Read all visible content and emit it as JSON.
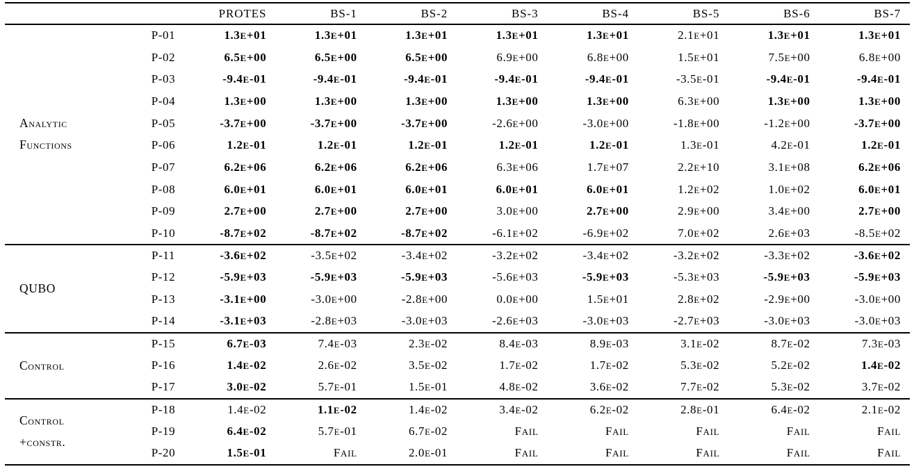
{
  "table": {
    "columns": [
      "PROTES",
      "BS-1",
      "BS-2",
      "BS-3",
      "BS-4",
      "BS-5",
      "BS-6",
      "BS-7"
    ],
    "groups": [
      {
        "label": "Analytic Functions",
        "label_lines": [
          "Analytic",
          "Functions"
        ],
        "rows": [
          {
            "id": "P-01",
            "values": [
              "1.3E+01",
              "1.3E+01",
              "1.3E+01",
              "1.3E+01",
              "1.3E+01",
              "2.1E+01",
              "1.3E+01",
              "1.3E+01"
            ],
            "bold": [
              1,
              1,
              1,
              1,
              1,
              0,
              1,
              1
            ]
          },
          {
            "id": "P-02",
            "values": [
              "6.5E+00",
              "6.5E+00",
              "6.5E+00",
              "6.9E+00",
              "6.8E+00",
              "1.5E+01",
              "7.5E+00",
              "6.8E+00"
            ],
            "bold": [
              1,
              1,
              1,
              0,
              0,
              0,
              0,
              0
            ]
          },
          {
            "id": "P-03",
            "values": [
              "-9.4E-01",
              "-9.4E-01",
              "-9.4E-01",
              "-9.4E-01",
              "-9.4E-01",
              "-3.5E-01",
              "-9.4E-01",
              "-9.4E-01"
            ],
            "bold": [
              1,
              1,
              1,
              1,
              1,
              0,
              1,
              1
            ]
          },
          {
            "id": "P-04",
            "values": [
              "1.3E+00",
              "1.3E+00",
              "1.3E+00",
              "1.3E+00",
              "1.3E+00",
              "6.3E+00",
              "1.3E+00",
              "1.3E+00"
            ],
            "bold": [
              1,
              1,
              1,
              1,
              1,
              0,
              1,
              1
            ]
          },
          {
            "id": "P-05",
            "values": [
              "-3.7E+00",
              "-3.7E+00",
              "-3.7E+00",
              "-2.6E+00",
              "-3.0E+00",
              "-1.8E+00",
              "-1.2E+00",
              "-3.7E+00"
            ],
            "bold": [
              1,
              1,
              1,
              0,
              0,
              0,
              0,
              1
            ]
          },
          {
            "id": "P-06",
            "values": [
              "1.2E-01",
              "1.2E-01",
              "1.2E-01",
              "1.2E-01",
              "1.2E-01",
              "1.3E-01",
              "4.2E-01",
              "1.2E-01"
            ],
            "bold": [
              1,
              1,
              1,
              1,
              1,
              0,
              0,
              1
            ]
          },
          {
            "id": "P-07",
            "values": [
              "6.2E+06",
              "6.2E+06",
              "6.2E+06",
              "6.3E+06",
              "1.7E+07",
              "2.2E+10",
              "3.1E+08",
              "6.2E+06"
            ],
            "bold": [
              1,
              1,
              1,
              0,
              0,
              0,
              0,
              1
            ]
          },
          {
            "id": "P-08",
            "values": [
              "6.0E+01",
              "6.0E+01",
              "6.0E+01",
              "6.0E+01",
              "6.0E+01",
              "1.2E+02",
              "1.0E+02",
              "6.0E+01"
            ],
            "bold": [
              1,
              1,
              1,
              1,
              1,
              0,
              0,
              1
            ]
          },
          {
            "id": "P-09",
            "values": [
              "2.7E+00",
              "2.7E+00",
              "2.7E+00",
              "3.0E+00",
              "2.7E+00",
              "2.9E+00",
              "3.4E+00",
              "2.7E+00"
            ],
            "bold": [
              1,
              1,
              1,
              0,
              1,
              0,
              0,
              1
            ]
          },
          {
            "id": "P-10",
            "values": [
              "-8.7E+02",
              "-8.7E+02",
              "-8.7E+02",
              "-6.1E+02",
              "-6.9E+02",
              "7.0E+02",
              "2.6E+03",
              "-8.5E+02"
            ],
            "bold": [
              1,
              1,
              1,
              0,
              0,
              0,
              0,
              0
            ]
          }
        ]
      },
      {
        "label": "QUBO",
        "label_lines": [
          "QUBO"
        ],
        "rows": [
          {
            "id": "P-11",
            "values": [
              "-3.6E+02",
              "-3.5E+02",
              "-3.4E+02",
              "-3.2E+02",
              "-3.4E+02",
              "-3.2E+02",
              "-3.3E+02",
              "-3.6E+02"
            ],
            "bold": [
              1,
              0,
              0,
              0,
              0,
              0,
              0,
              1
            ]
          },
          {
            "id": "P-12",
            "values": [
              "-5.9E+03",
              "-5.9E+03",
              "-5.9E+03",
              "-5.6E+03",
              "-5.9E+03",
              "-5.3E+03",
              "-5.9E+03",
              "-5.9E+03"
            ],
            "bold": [
              1,
              1,
              1,
              0,
              1,
              0,
              1,
              1
            ]
          },
          {
            "id": "P-13",
            "values": [
              "-3.1E+00",
              "-3.0E+00",
              "-2.8E+00",
              "0.0E+00",
              "1.5E+01",
              "2.8E+02",
              "-2.9E+00",
              "-3.0E+00"
            ],
            "bold": [
              1,
              0,
              0,
              0,
              0,
              0,
              0,
              0
            ]
          },
          {
            "id": "P-14",
            "values": [
              "-3.1E+03",
              "-2.8E+03",
              "-3.0E+03",
              "-2.6E+03",
              "-3.0E+03",
              "-2.7E+03",
              "-3.0E+03",
              "-3.0E+03"
            ],
            "bold": [
              1,
              0,
              0,
              0,
              0,
              0,
              0,
              0
            ]
          }
        ]
      },
      {
        "label": "Control",
        "label_lines": [
          "Control"
        ],
        "rows": [
          {
            "id": "P-15",
            "values": [
              "6.7E-03",
              "7.4E-03",
              "2.3E-02",
              "8.4E-03",
              "8.9E-03",
              "3.1E-02",
              "8.7E-02",
              "7.3E-03"
            ],
            "bold": [
              1,
              0,
              0,
              0,
              0,
              0,
              0,
              0
            ]
          },
          {
            "id": "P-16",
            "values": [
              "1.4E-02",
              "2.6E-02",
              "3.5E-02",
              "1.7E-02",
              "1.7E-02",
              "5.3E-02",
              "5.2E-02",
              "1.4E-02"
            ],
            "bold": [
              1,
              0,
              0,
              0,
              0,
              0,
              0,
              1
            ]
          },
          {
            "id": "P-17",
            "values": [
              "3.0E-02",
              "5.7E-01",
              "1.5E-01",
              "4.8E-02",
              "3.6E-02",
              "7.7E-02",
              "5.3E-02",
              "3.7E-02"
            ],
            "bold": [
              1,
              0,
              0,
              0,
              0,
              0,
              0,
              0
            ]
          }
        ]
      },
      {
        "label": "Control +constr.",
        "label_lines": [
          "Control",
          "+constr."
        ],
        "rows": [
          {
            "id": "P-18",
            "values": [
              "1.4E-02",
              "1.1E-02",
              "1.4E-02",
              "3.4E-02",
              "6.2E-02",
              "2.8E-01",
              "6.4E-02",
              "2.1E-02"
            ],
            "bold": [
              0,
              1,
              0,
              0,
              0,
              0,
              0,
              0
            ]
          },
          {
            "id": "P-19",
            "values": [
              "6.4E-02",
              "5.7E-01",
              "6.7E-02",
              "FAIL",
              "FAIL",
              "FAIL",
              "FAIL",
              "FAIL"
            ],
            "bold": [
              1,
              0,
              0,
              0,
              0,
              0,
              0,
              0
            ]
          },
          {
            "id": "P-20",
            "values": [
              "1.5E-01",
              "FAIL",
              "2.0E-01",
              "FAIL",
              "FAIL",
              "FAIL",
              "FAIL",
              "FAIL"
            ],
            "bold": [
              1,
              0,
              0,
              0,
              0,
              0,
              0,
              0
            ]
          }
        ]
      }
    ]
  }
}
